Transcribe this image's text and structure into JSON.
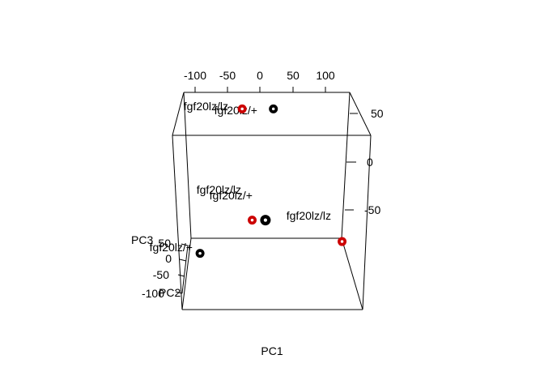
{
  "chart_data": {
    "type": "scatter",
    "projection": "3d",
    "title": "",
    "xlabel": "PC1",
    "ylabel": "PC2",
    "zlabel": "PC3",
    "axes": {
      "top_ticks": [
        "-100",
        "-50",
        "0",
        "50",
        "100"
      ],
      "right_ticks": [
        "50",
        "0",
        "-50"
      ],
      "left_ticks": [
        "50",
        "0",
        "-50",
        "-100"
      ]
    },
    "colors": {
      "lz/+": "#000000",
      "lz/lz": "#cc0000"
    },
    "points": [
      {
        "label": "fgf20lz/lz",
        "group": "lz/lz",
        "pc1": -35,
        "pc2": -98,
        "pc3": 55
      },
      {
        "label": "fgf20lz/+",
        "group": "lz/+",
        "pc1": 12,
        "pc2": -98,
        "pc3": 55
      },
      {
        "label": "fgf20lz/lz",
        "group": "lz/lz",
        "pc1": -15,
        "pc2": -40,
        "pc3": -25
      },
      {
        "label": "fgf20lz/+",
        "group": "lz/+",
        "pc1": 5,
        "pc2": -40,
        "pc3": -25
      },
      {
        "label": "fgf20lz/lz",
        "group": "lz/lz",
        "pc1": 120,
        "pc2": -45,
        "pc3": -50
      },
      {
        "label": "fgf20lz/+",
        "group": "lz/+",
        "pc1": -85,
        "pc2": 60,
        "pc3": 0
      }
    ]
  }
}
